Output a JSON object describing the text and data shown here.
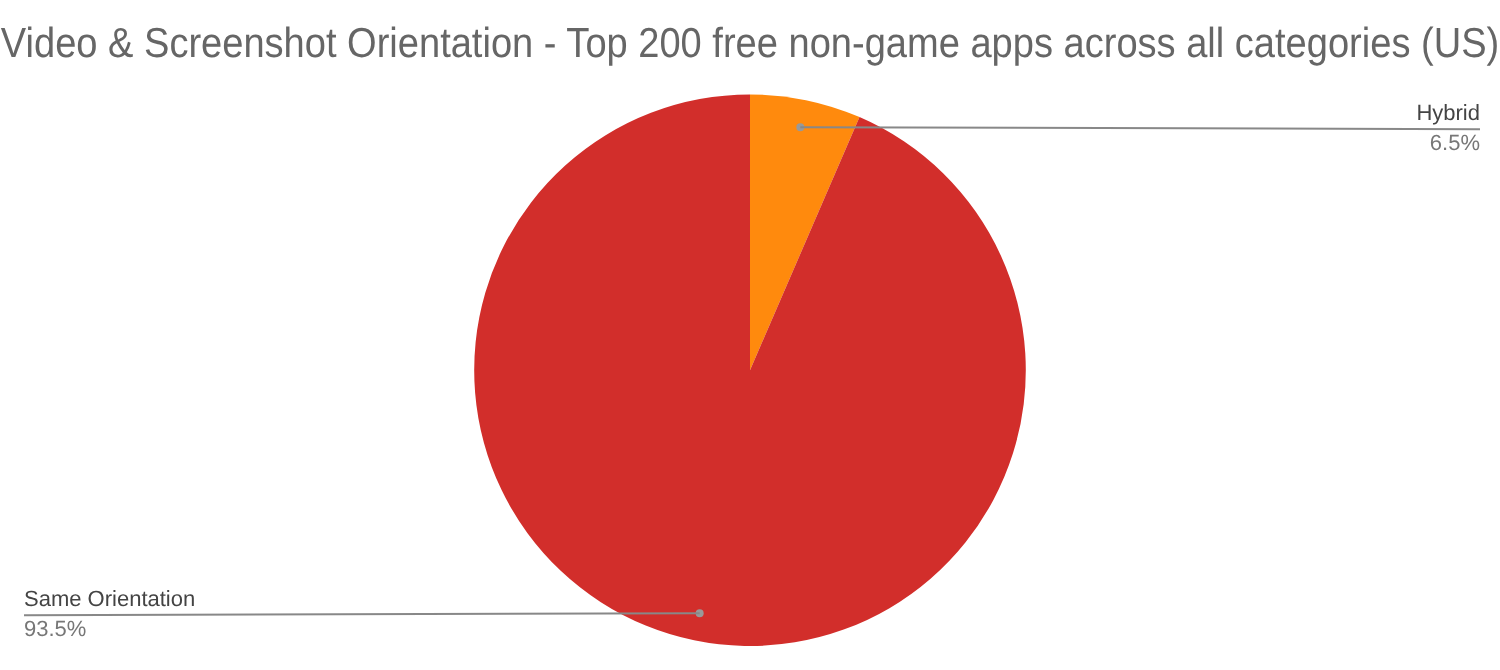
{
  "chart_data": {
    "type": "pie",
    "title": "Video & Screenshot Orientation - Top 200 free non-game apps across all categories (US)",
    "categories": [
      "Hybrid",
      "Same Orientation"
    ],
    "values": [
      6.5,
      93.5
    ],
    "value_labels": [
      "6.5%",
      "93.5%"
    ],
    "colors": [
      "#ff8a0d",
      "#d22e2b"
    ],
    "legend": false
  }
}
